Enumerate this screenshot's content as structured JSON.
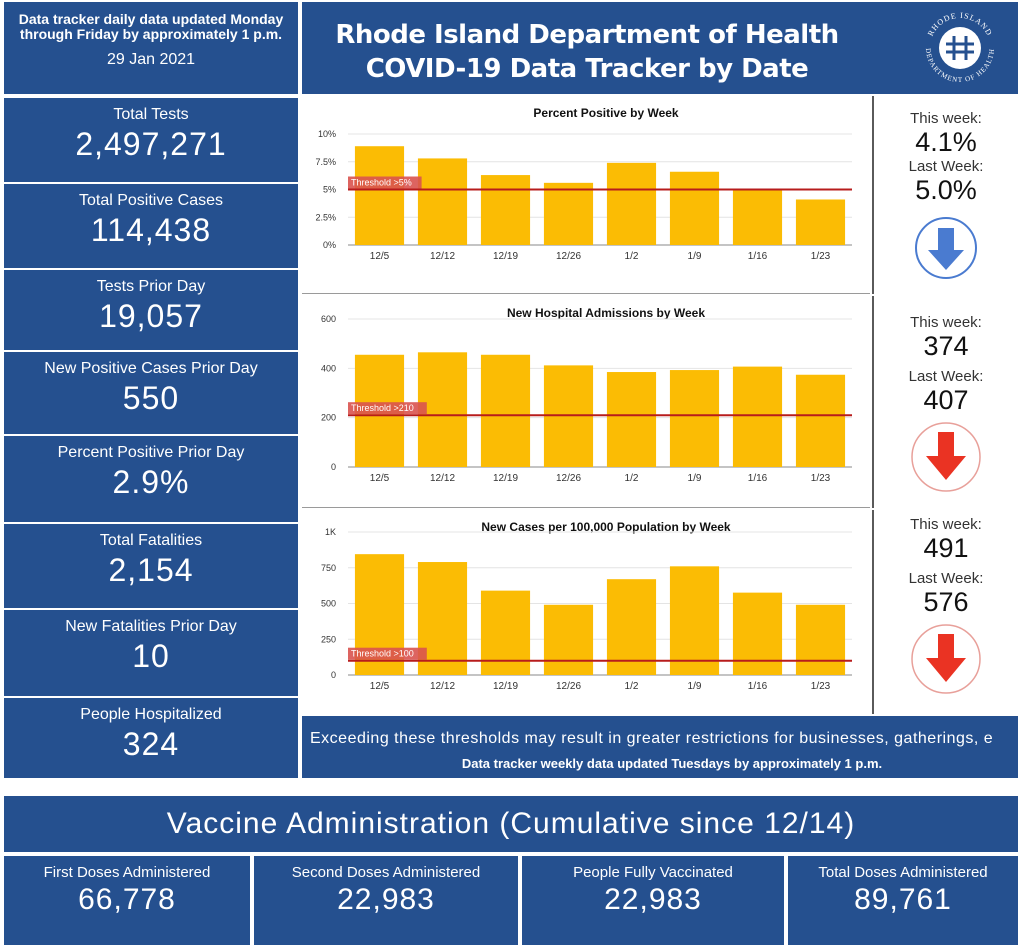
{
  "header": {
    "update_note": "Data tracker daily data updated Monday through Friday by approximately 1 p.m.",
    "date": "29 Jan 2021",
    "title_line1": "Rhode Island Department of Health",
    "title_line2": "COVID-19 Data Tracker by Date",
    "seal_text_top": "RHODE ISLAND",
    "seal_text_bottom": "DEPARTMENT OF HEALTH"
  },
  "metrics": [
    {
      "label": "Total Tests",
      "value": "2,497,271"
    },
    {
      "label": "Total Positive Cases",
      "value": "114,438"
    },
    {
      "label": "Tests Prior Day",
      "value": "19,057"
    },
    {
      "label": "New Positive Cases Prior Day",
      "value": "550"
    },
    {
      "label": "Percent Positive Prior Day",
      "value": "2.9%"
    },
    {
      "label": "Total Fatalities",
      "value": "2,154"
    },
    {
      "label": "New Fatalities Prior Day",
      "value": "10"
    },
    {
      "label": "People Hospitalized",
      "value": "324"
    }
  ],
  "comparisons": [
    {
      "this_label": "This week:",
      "this_value": "4.1%",
      "last_label": "Last Week:",
      "last_value": "5.0%",
      "arrow": "down-arrow-blue"
    },
    {
      "this_label": "This week:",
      "this_value": "374",
      "last_label": "Last Week:",
      "last_value": "407",
      "arrow": "down-arrow-red"
    },
    {
      "this_label": "This week:",
      "this_value": "491",
      "last_label": "Last Week:",
      "last_value": "576",
      "arrow": "down-arrow-red"
    }
  ],
  "colors": {
    "panel_blue": "#25508f",
    "bar_gold": "#fbbc04",
    "threshold_red": "#b71c1c",
    "arrow_blue": "#4a7bd0",
    "arrow_red": "#ea3323"
  },
  "chart_data": [
    {
      "type": "bar",
      "title": "Percent Positive by Week",
      "categories": [
        "12/5",
        "12/12",
        "12/19",
        "12/26",
        "1/2",
        "1/9",
        "1/16",
        "1/23"
      ],
      "values": [
        8.9,
        7.8,
        6.3,
        5.6,
        7.4,
        6.6,
        5.0,
        4.1
      ],
      "yticks": [
        "0%",
        "2.5%",
        "5%",
        "7.5%",
        "10%"
      ],
      "ylim": [
        0,
        10
      ],
      "threshold": {
        "value": 5,
        "label": "Threshold >5%"
      }
    },
    {
      "type": "bar",
      "title": "New Hospital Admissions by Week",
      "categories": [
        "12/5",
        "12/12",
        "12/19",
        "12/26",
        "1/2",
        "1/9",
        "1/16",
        "1/23"
      ],
      "values": [
        455,
        465,
        455,
        412,
        385,
        393,
        407,
        374
      ],
      "yticks": [
        "0",
        "200",
        "400",
        "600"
      ],
      "ylim": [
        0,
        600
      ],
      "threshold": {
        "value": 210,
        "label": "Threshold >210"
      }
    },
    {
      "type": "bar",
      "title": "New Cases per 100,000 Population by Week",
      "categories": [
        "12/5",
        "12/12",
        "12/19",
        "12/26",
        "1/2",
        "1/9",
        "1/16",
        "1/23"
      ],
      "values": [
        845,
        790,
        590,
        491,
        670,
        760,
        576,
        491
      ],
      "yticks": [
        "0",
        "250",
        "500",
        "750",
        "1K"
      ],
      "ylim": [
        0,
        1000
      ],
      "threshold": {
        "value": 100,
        "label": "Threshold >100"
      }
    }
  ],
  "footer": {
    "threshold_note": "Exceeding these thresholds may result in greater restrictions for businesses, gatherings, e",
    "weekly_note": "Data tracker weekly data updated Tuesdays by approximately 1 p.m."
  },
  "vaccine": {
    "header": "Vaccine Administration (Cumulative since 12/14)",
    "items": [
      {
        "label": "First Doses Administered",
        "value": "66,778"
      },
      {
        "label": "Second Doses Administered",
        "value": "22,983"
      },
      {
        "label": "People Fully Vaccinated",
        "value": "22,983"
      },
      {
        "label": "Total Doses Administered",
        "value": "89,761"
      }
    ]
  }
}
